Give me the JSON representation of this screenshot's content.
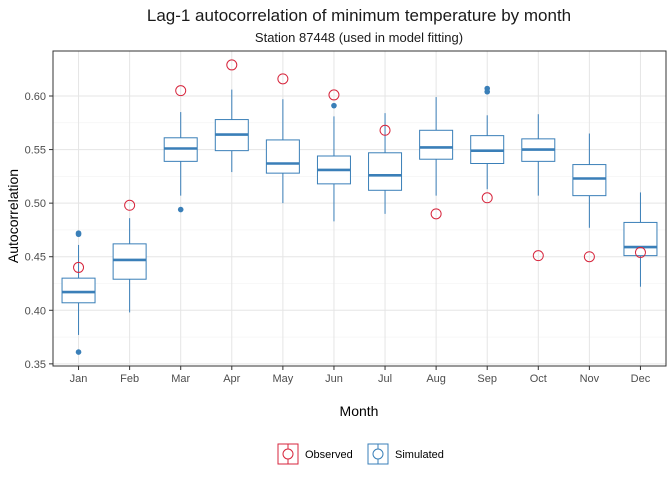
{
  "chart_data": {
    "type": "boxplot",
    "title": "Lag-1 autocorrelation of minimum temperature by month",
    "subtitle": "Station 87448 (used in model fitting)",
    "xlabel": "Month",
    "ylabel": "Autocorrelation",
    "ylim": [
      0.348,
      0.642
    ],
    "yticks": [
      0.35,
      0.4,
      0.45,
      0.5,
      0.55,
      0.6
    ],
    "ytick_labels": [
      "0.35",
      "0.40",
      "0.45",
      "0.50",
      "0.55",
      "0.60"
    ],
    "grid": true,
    "legend_position": "bottom",
    "categories": [
      "Jan",
      "Feb",
      "Mar",
      "Apr",
      "May",
      "Jun",
      "Jul",
      "Aug",
      "Sep",
      "Oct",
      "Nov",
      "Dec"
    ],
    "simulated": {
      "name": "Simulated",
      "color": "#3a7fb8",
      "boxes": [
        {
          "whisker_low": 0.377,
          "q1": 0.407,
          "median": 0.417,
          "q3": 0.43,
          "whisker_high": 0.461,
          "outliers": [
            0.471,
            0.472,
            0.361
          ]
        },
        {
          "whisker_low": 0.398,
          "q1": 0.429,
          "median": 0.447,
          "q3": 0.462,
          "whisker_high": 0.486,
          "outliers": []
        },
        {
          "whisker_low": 0.507,
          "q1": 0.539,
          "median": 0.551,
          "q3": 0.561,
          "whisker_high": 0.585,
          "outliers": [
            0.494
          ]
        },
        {
          "whisker_low": 0.529,
          "q1": 0.549,
          "median": 0.564,
          "q3": 0.578,
          "whisker_high": 0.606,
          "outliers": []
        },
        {
          "whisker_low": 0.5,
          "q1": 0.528,
          "median": 0.537,
          "q3": 0.559,
          "whisker_high": 0.597,
          "outliers": []
        },
        {
          "whisker_low": 0.483,
          "q1": 0.518,
          "median": 0.531,
          "q3": 0.544,
          "whisker_high": 0.581,
          "outliers": [
            0.591
          ]
        },
        {
          "whisker_low": 0.49,
          "q1": 0.512,
          "median": 0.526,
          "q3": 0.547,
          "whisker_high": 0.584,
          "outliers": []
        },
        {
          "whisker_low": 0.507,
          "q1": 0.541,
          "median": 0.552,
          "q3": 0.568,
          "whisker_high": 0.599,
          "outliers": []
        },
        {
          "whisker_low": 0.513,
          "q1": 0.537,
          "median": 0.549,
          "q3": 0.563,
          "whisker_high": 0.582,
          "outliers": [
            0.604,
            0.607
          ]
        },
        {
          "whisker_low": 0.507,
          "q1": 0.539,
          "median": 0.55,
          "q3": 0.56,
          "whisker_high": 0.583,
          "outliers": []
        },
        {
          "whisker_low": 0.477,
          "q1": 0.507,
          "median": 0.523,
          "q3": 0.536,
          "whisker_high": 0.565,
          "outliers": []
        },
        {
          "whisker_low": 0.422,
          "q1": 0.451,
          "median": 0.459,
          "q3": 0.482,
          "whisker_high": 0.51,
          "outliers": []
        }
      ]
    },
    "observed": {
      "name": "Observed",
      "color": "#d7263d",
      "values": [
        0.44,
        0.498,
        0.605,
        0.629,
        0.616,
        0.601,
        0.568,
        0.49,
        0.505,
        0.451,
        0.45,
        0.454
      ]
    }
  }
}
